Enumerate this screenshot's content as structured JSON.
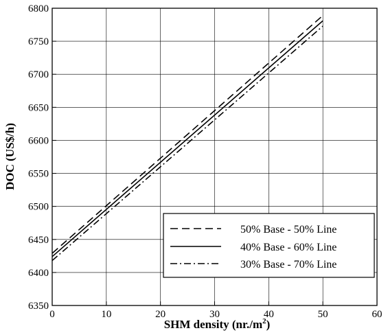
{
  "chart_data": {
    "type": "line",
    "xlabel": "SHM density (nr./m",
    "xlabel_superscript": "2",
    "xlabel_suffix": ")",
    "ylabel": "DOC (US$/h)",
    "xlim": [
      0,
      60
    ],
    "ylim": [
      6350,
      6800
    ],
    "xticks": [
      0,
      10,
      20,
      30,
      40,
      50,
      60
    ],
    "yticks": [
      6350,
      6400,
      6450,
      6500,
      6550,
      6600,
      6650,
      6700,
      6750,
      6800
    ],
    "grid": true,
    "legend_position": "bottom-right",
    "series": [
      {
        "name": "50% Base - 50% Line",
        "style": "dashed",
        "color": "#000000",
        "x": [
          0,
          50
        ],
        "y": [
          6429,
          6789
        ]
      },
      {
        "name": "40% Base - 60% Line",
        "style": "solid",
        "color": "#000000",
        "x": [
          0,
          50
        ],
        "y": [
          6424,
          6781
        ]
      },
      {
        "name": "30% Base - 70% Line",
        "style": "dashdot",
        "color": "#000000",
        "x": [
          0,
          50
        ],
        "y": [
          6418,
          6773
        ]
      }
    ]
  }
}
